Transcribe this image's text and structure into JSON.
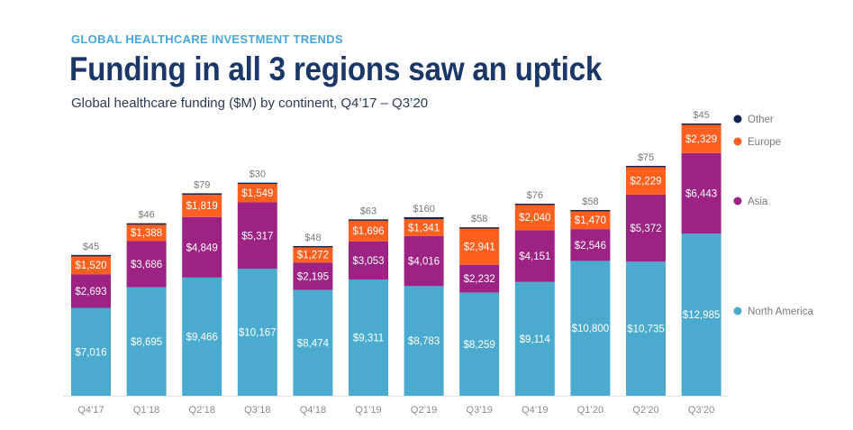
{
  "header": {
    "kicker": "GLOBAL HEALTHCARE INVESTMENT TRENDS",
    "title": "Funding in all 3 regions saw an uptick",
    "subtitle": "Global healthcare funding ($M) by continent, Q4’17 – Q3’20"
  },
  "chart_data": {
    "type": "bar",
    "stacked": true,
    "title": "Funding in all 3 regions saw an uptick",
    "subtitle": "Global healthcare funding ($M) by continent, Q4’17 – Q3’20",
    "xlabel": "",
    "ylabel": "",
    "grid": false,
    "legend_position": "right",
    "categories": [
      "Q4’17",
      "Q1’18",
      "Q2’18",
      "Q3’18",
      "Q4’18",
      "Q1’19",
      "Q2’19",
      "Q3’19",
      "Q4’19",
      "Q1’20",
      "Q2’20",
      "Q3’20"
    ],
    "series": [
      {
        "name": "North America",
        "color": "#4aabcf",
        "values": [
          7016,
          8695,
          9466,
          10167,
          8474,
          9311,
          8783,
          8259,
          9114,
          10800,
          10735,
          12985
        ]
      },
      {
        "name": "Asia",
        "color": "#9c2383",
        "values": [
          2693,
          3686,
          4849,
          5317,
          2195,
          3053,
          4016,
          2232,
          4151,
          2546,
          5372,
          6443
        ]
      },
      {
        "name": "Europe",
        "color": "#ff5f1f",
        "values": [
          1520,
          1388,
          1819,
          1549,
          1272,
          1696,
          1341,
          2941,
          2040,
          1470,
          2229,
          2329
        ]
      },
      {
        "name": "Other",
        "color": "#13254d",
        "values": [
          45,
          46,
          79,
          30,
          48,
          63,
          160,
          58,
          76,
          58,
          75,
          45
        ]
      }
    ],
    "legend_order": [
      "Other",
      "Europe",
      "Asia",
      "North America"
    ],
    "value_prefix": "$"
  }
}
